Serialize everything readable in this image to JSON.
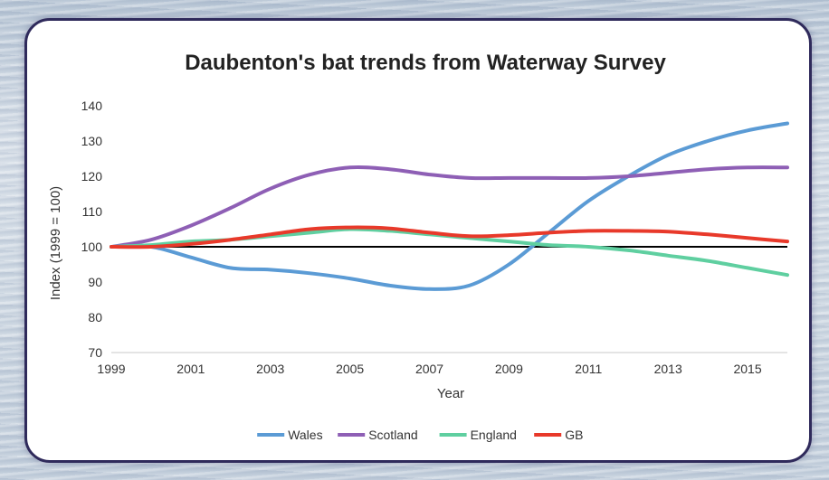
{
  "chart_data": {
    "type": "line",
    "title": "Daubenton's bat trends from Waterway Survey",
    "xlabel": "Year",
    "ylabel": "Index (1999 = 100)",
    "xlim": [
      1999,
      2016
    ],
    "ylim": [
      70,
      140
    ],
    "x_ticks": [
      "1999",
      "2001",
      "2003",
      "2005",
      "2007",
      "2009",
      "2011",
      "2013",
      "2015"
    ],
    "y_ticks": [
      "70",
      "80",
      "90",
      "100",
      "110",
      "120",
      "130",
      "140"
    ],
    "baseline": 100,
    "legend_position": "bottom",
    "x": [
      1999,
      2000,
      2001,
      2002,
      2003,
      2004,
      2005,
      2006,
      2007,
      2008,
      2009,
      2010,
      2011,
      2012,
      2013,
      2014,
      2015,
      2016
    ],
    "series": [
      {
        "name": "Wales",
        "color": "#5b9bd5",
        "values": [
          100,
          100,
          97,
          94,
          93.5,
          92.5,
          91,
          89,
          88,
          89,
          95,
          104,
          113,
          120,
          126,
          130,
          133,
          135
        ]
      },
      {
        "name": "Scotland",
        "color": "#8e5fb5",
        "values": [
          100,
          102,
          106,
          111,
          116.5,
          120.5,
          122.5,
          122,
          120.5,
          119.5,
          119.5,
          119.5,
          119.5,
          120,
          121,
          122,
          122.5,
          122.5
        ]
      },
      {
        "name": "England",
        "color": "#5fcfa0",
        "values": [
          100,
          100.5,
          101.5,
          102,
          103,
          104,
          105,
          104.5,
          103.5,
          102.5,
          101.5,
          100.5,
          100,
          99,
          97.5,
          96,
          94,
          92
        ]
      },
      {
        "name": "GB",
        "color": "#e8392a",
        "values": [
          100,
          100,
          100.8,
          102,
          103.5,
          105,
          105.5,
          105.2,
          104,
          103,
          103.3,
          104,
          104.5,
          104.5,
          104.3,
          103.5,
          102.5,
          101.5
        ]
      }
    ]
  }
}
